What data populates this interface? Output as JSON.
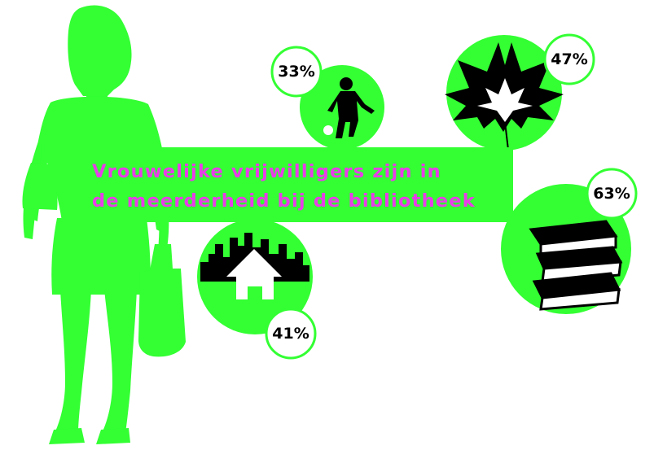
{
  "headline": {
    "text": "Vrouwelijke vrijwilligers zijn in\nde meerderheid bij de bibliotheek"
  },
  "stats": [
    {
      "icon": "child-playing-ball-icon",
      "value": "33%"
    },
    {
      "icon": "leaf-icon",
      "value": "47%"
    },
    {
      "icon": "books-icon",
      "value": "63%"
    },
    {
      "icon": "house-city-icon",
      "value": "41%"
    }
  ],
  "colors": {
    "accent_green": "#33ff33",
    "headline_magenta": "#e83de8",
    "badge_border": "#33ff33",
    "icon_black": "#000000"
  }
}
